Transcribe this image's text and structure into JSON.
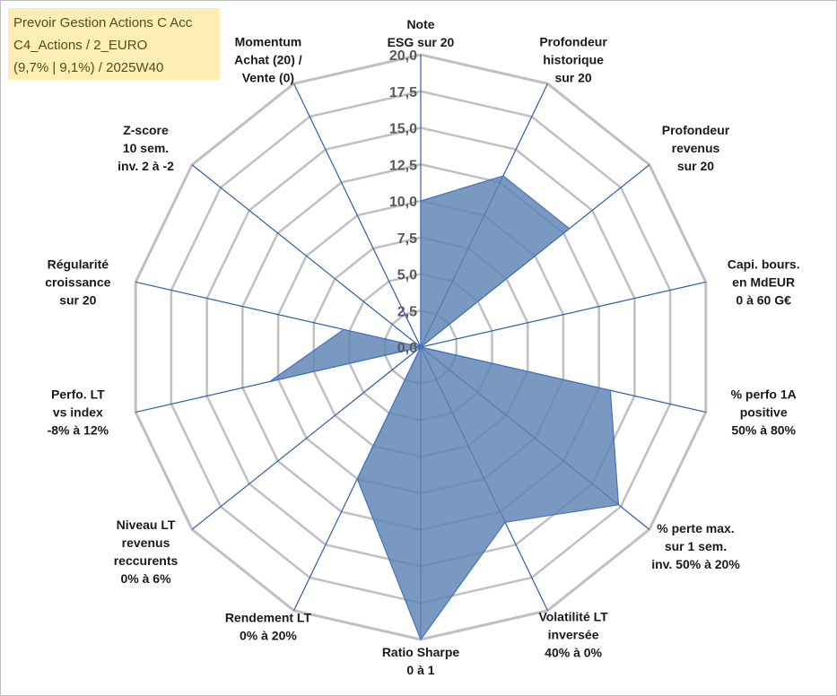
{
  "info_box": {
    "line1": "Prevoir Gestion Actions C Acc",
    "line2": "C4_Actions / 2_EURO",
    "line3": "(9,7% | 9,1%) / 2025W40"
  },
  "colors": {
    "fill": "#5b82b2",
    "stroke": "#4472c4",
    "spoke": "#2f5ea8",
    "grid": "#c0c0c0",
    "info_bg": "#fdeeb5"
  },
  "chart_data": {
    "type": "radar",
    "title": "",
    "axes": [
      "Note\nESG sur 20",
      "Profondeur\nhistorique\nsur 20",
      "Profondeur\nrevenus\nsur 20",
      "Capi. bours.\nen MdEUR\n0 à 60 G€",
      "% perfo 1A\npositive\n50% à 80%",
      "% perte max.\nsur 1 sem.\ninv. 50% à 20%",
      "Volatilité LT\ninversée\n40% à 0%",
      "Ratio Sharpe\n0 à 1",
      "Rendement LT\n0% à 20%",
      "Niveau LT\nrevenus\nreccurents\n0% à 6%",
      "Perfo. LT\nvs index\n-8% à 12%",
      "Régularité\ncroissance\nsur 20",
      "Z-score\n10 sem.\ninv. 2 à -2",
      "Momentum\nAchat (20) /\nVente (0)"
    ],
    "values": [
      10,
      13,
      13,
      0,
      13.3,
      17.3,
      13.3,
      20,
      10,
      0,
      10.6,
      5.4,
      0,
      0
    ],
    "rmin": 0,
    "rmax": 20,
    "ticks": [
      "0,0",
      "2,5",
      "5,0",
      "7,5",
      "10,0",
      "12,5",
      "15,0",
      "17,5",
      "20,0"
    ],
    "tick_values": [
      0,
      2.5,
      5,
      7.5,
      10,
      12.5,
      15,
      17.5,
      20
    ],
    "grid": true
  }
}
